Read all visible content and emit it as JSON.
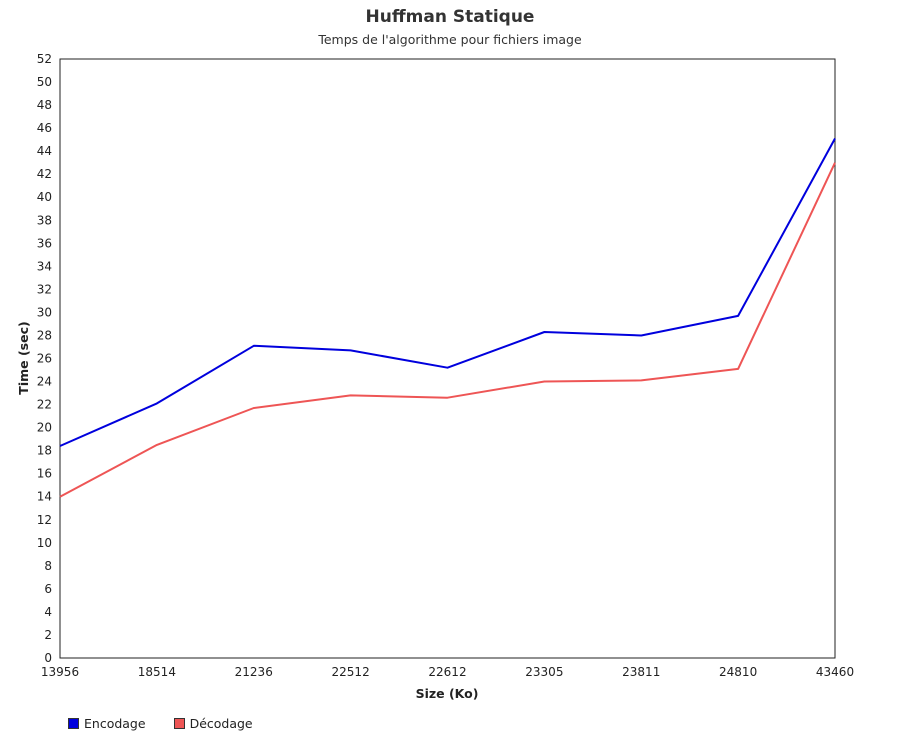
{
  "chart_data": {
    "type": "line",
    "title": "Huffman Statique",
    "subtitle": "Temps de l'algorithme pour fichiers image",
    "xlabel": "Size (Ko)",
    "ylabel": "Time (sec)",
    "categories": [
      "13956",
      "18514",
      "21236",
      "22512",
      "22612",
      "23305",
      "23811",
      "24810",
      "43460"
    ],
    "ylim": [
      0,
      52
    ],
    "ytick_step": 2,
    "grid": false,
    "legend_position": "bottom-left",
    "series": [
      {
        "name": "Encodage",
        "color": "#0000dd",
        "values": [
          18.4,
          22.1,
          27.1,
          26.7,
          25.2,
          28.3,
          28.0,
          29.7,
          45.1
        ]
      },
      {
        "name": "Décodage",
        "color": "#ee5555",
        "values": [
          14.0,
          18.5,
          21.7,
          22.8,
          22.6,
          24.0,
          24.1,
          25.1,
          43.0
        ]
      }
    ]
  }
}
